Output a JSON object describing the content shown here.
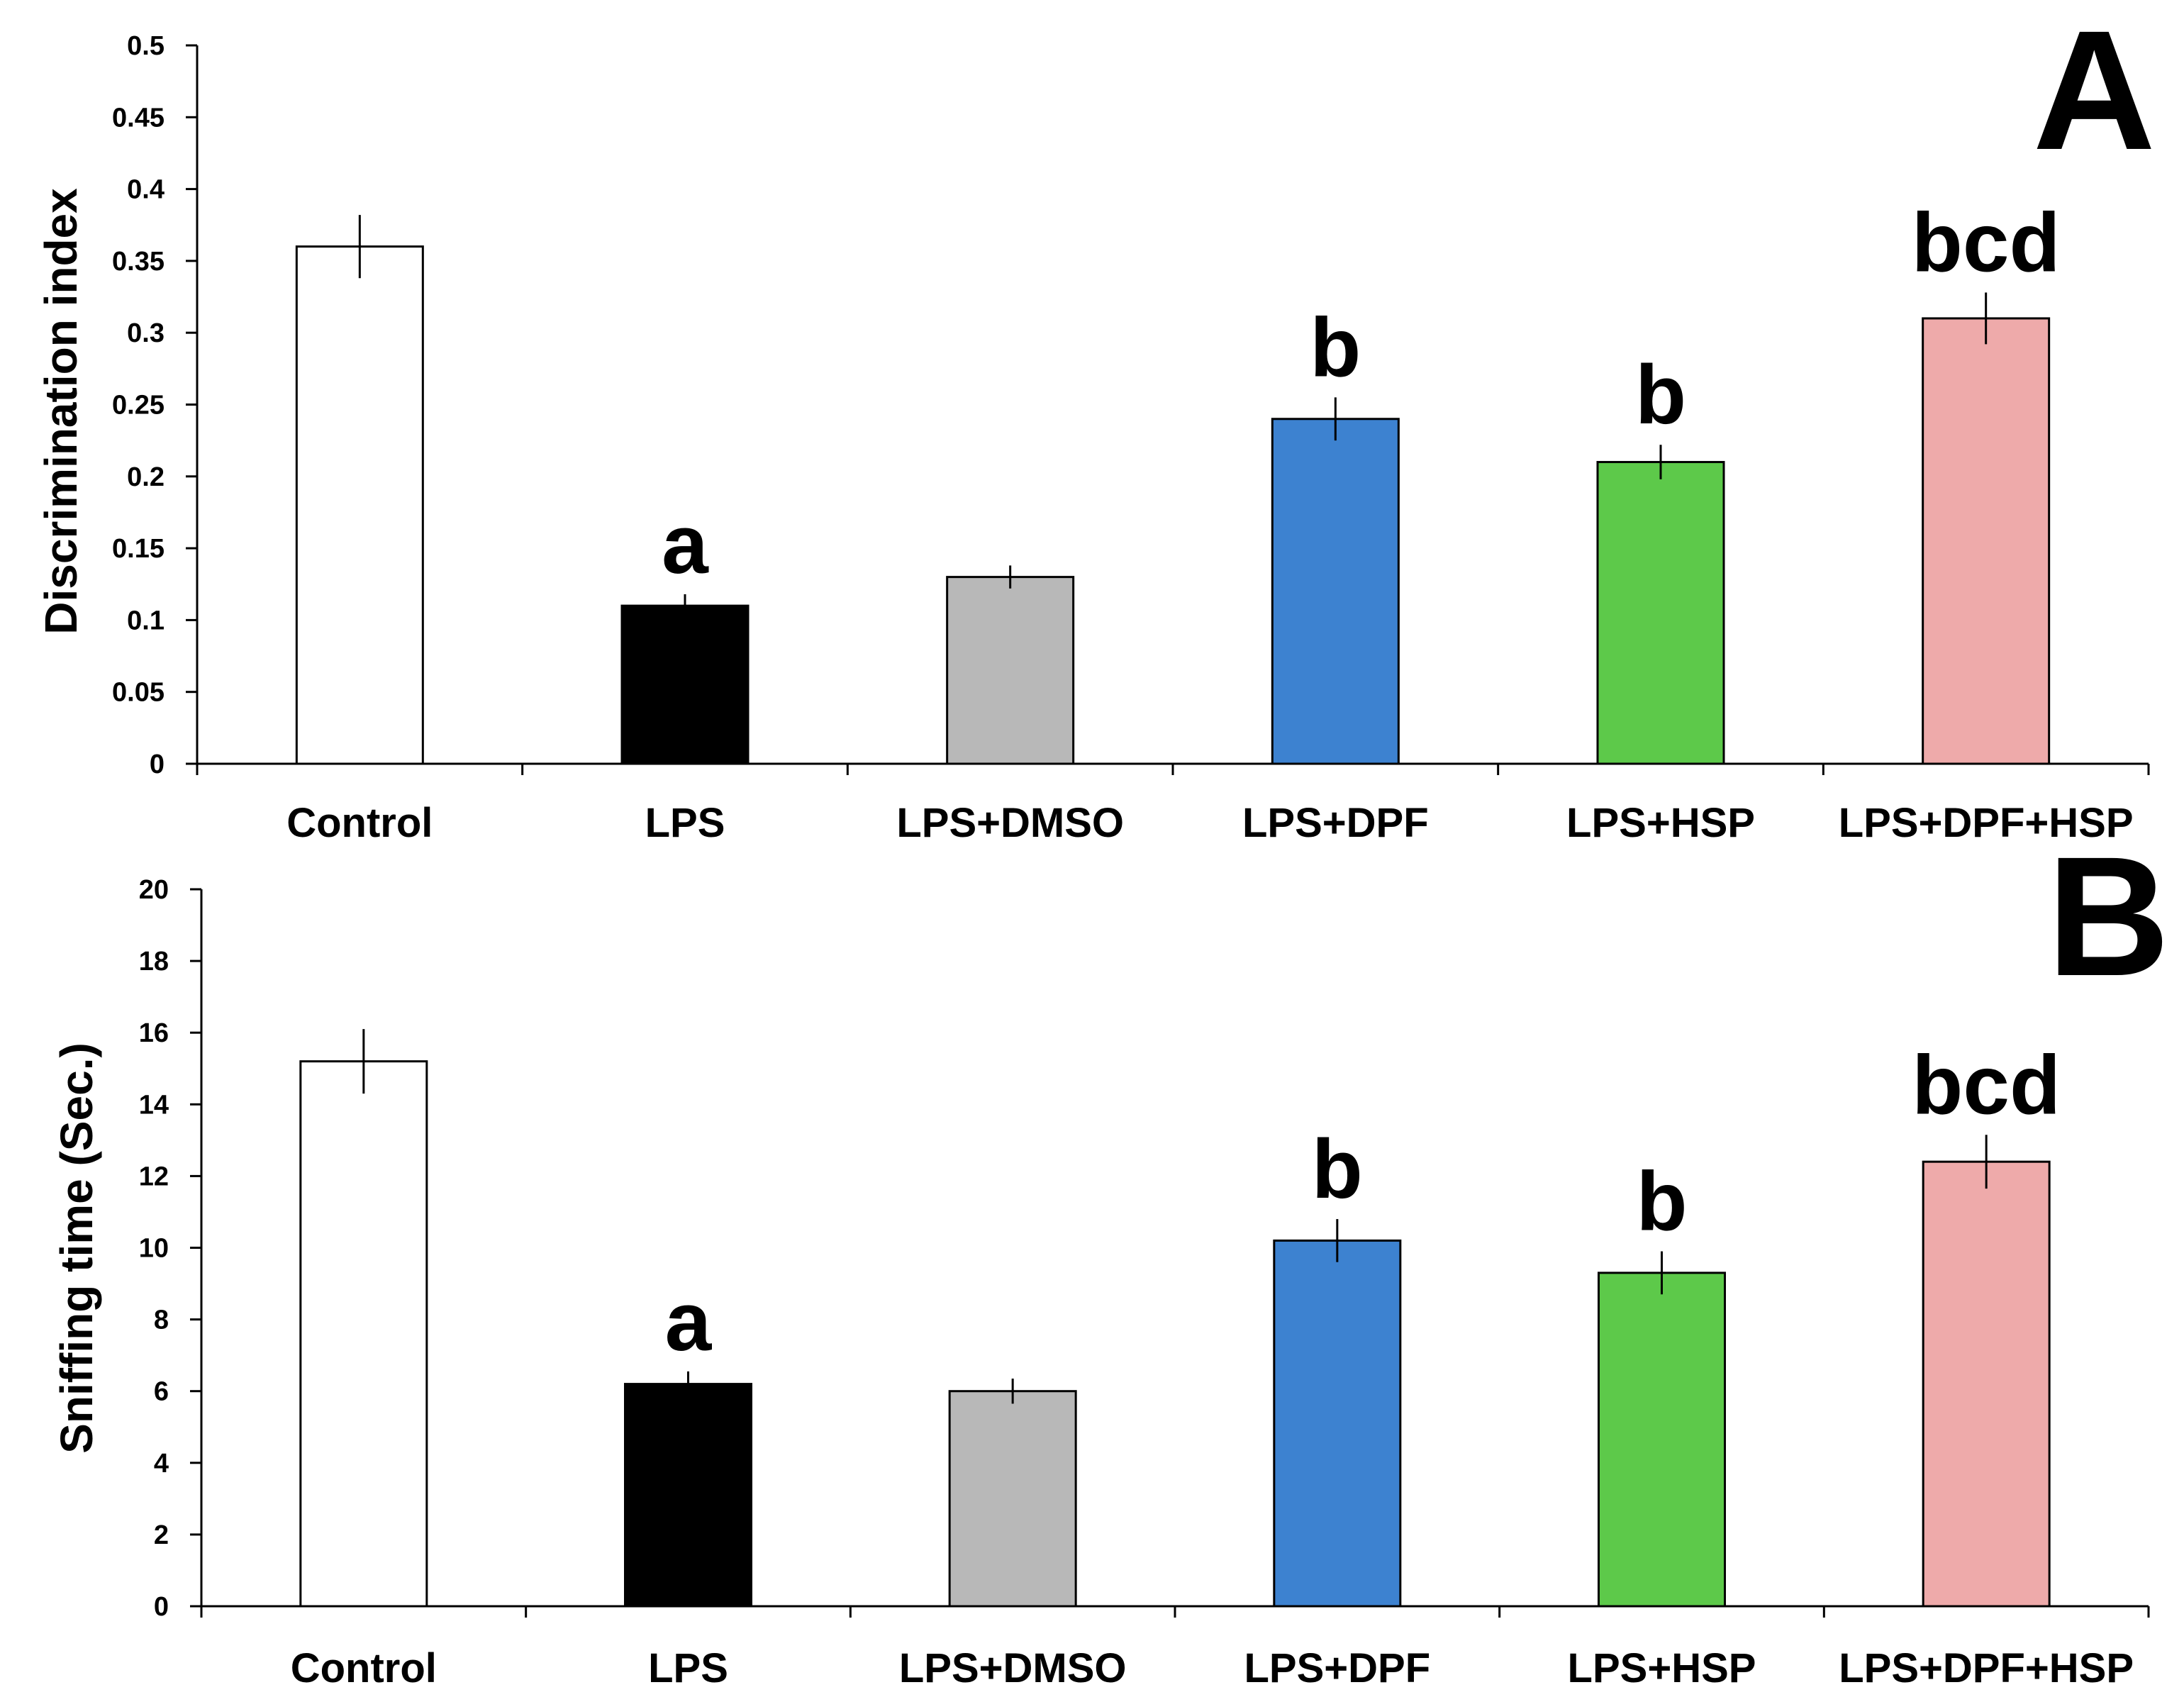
{
  "chart_data": [
    {
      "type": "bar",
      "panel_label": "A",
      "ylabel": "Discrimination index",
      "xlabel": "",
      "ylim": [
        0,
        0.5
      ],
      "yticks": [
        "0",
        "0.05",
        "0.1",
        "0.15",
        "0.2",
        "0.25",
        "0.3",
        "0.35",
        "0.4",
        "0.45",
        "0.5"
      ],
      "ytick_values": [
        0,
        0.05,
        0.1,
        0.15,
        0.2,
        0.25,
        0.3,
        0.35,
        0.4,
        0.45,
        0.5
      ],
      "categories": [
        "Control",
        "LPS",
        "LPS+DMSO",
        "LPS+DPF",
        "LPS+HSP",
        "LPS+DPF+HSP"
      ],
      "values": [
        0.36,
        0.11,
        0.13,
        0.24,
        0.21,
        0.31
      ],
      "errors": [
        0.022,
        0.008,
        0.008,
        0.015,
        0.012,
        0.018
      ],
      "colors": [
        "#ffffff",
        "#000000",
        "#b8b8b8",
        "#3d82d0",
        "#5dc94a",
        "#eeaaaa"
      ],
      "significance": [
        "",
        "a",
        "",
        "b",
        "b",
        "bcd"
      ],
      "grid": false
    },
    {
      "type": "bar",
      "panel_label": "B",
      "ylabel": "Sniffing time (Sec.)",
      "xlabel": "",
      "ylim": [
        0,
        20
      ],
      "yticks": [
        "0",
        "2",
        "4",
        "6",
        "8",
        "10",
        "12",
        "14",
        "16",
        "18",
        "20"
      ],
      "ytick_values": [
        0,
        2,
        4,
        6,
        8,
        10,
        12,
        14,
        16,
        18,
        20
      ],
      "categories": [
        "Control",
        "LPS",
        "LPS+DMSO",
        "LPS+DPF",
        "LPS+HSP",
        "LPS+DPF+HSP"
      ],
      "values": [
        15.2,
        6.2,
        6.0,
        10.2,
        9.3,
        12.4
      ],
      "errors": [
        0.9,
        0.35,
        0.35,
        0.6,
        0.6,
        0.75
      ],
      "colors": [
        "#ffffff",
        "#000000",
        "#b8b8b8",
        "#3d82d0",
        "#5dc94a",
        "#eeaaaa"
      ],
      "significance": [
        "",
        "a",
        "",
        "b",
        "b",
        "bcd"
      ],
      "grid": false
    }
  ]
}
